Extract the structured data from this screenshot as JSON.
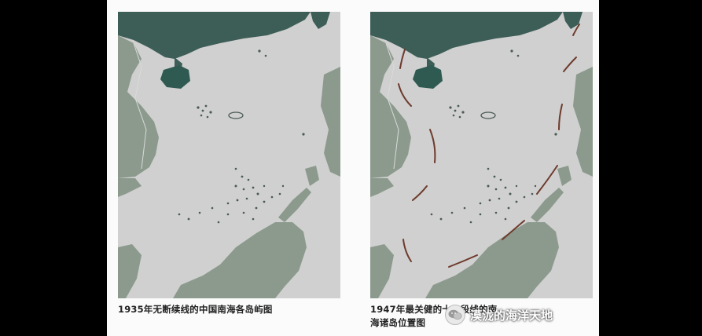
{
  "maps": [
    {
      "caption": "1935年无断续线的中国南海各岛屿图",
      "has_dashed_line": false
    },
    {
      "caption_line1": "1947年最关健的十一段线的南",
      "caption_line2": "海诸岛位置图",
      "has_dashed_line": true
    }
  ],
  "watermark": {
    "text": "漠泷的海洋天地",
    "icon": "wechat-icon"
  },
  "colors": {
    "sea": "#cfd0cf",
    "land_light": "#8c9a8e",
    "land_dark": "#3d5d57",
    "hainan": "#2f5a52",
    "dash_line": "#6e3a2d",
    "frame": "#fbfbfb"
  }
}
